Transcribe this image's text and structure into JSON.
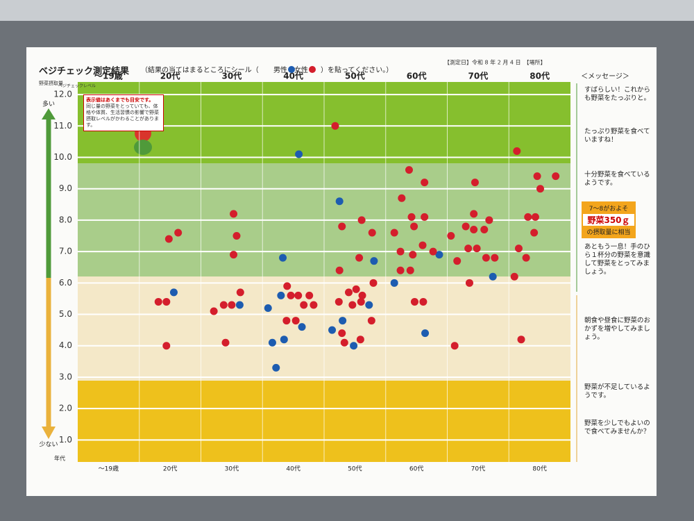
{
  "chart_data": {
    "type": "scatter",
    "title": "ベジチェック測定結果",
    "instruction_before": "（結果の当てはまるところにシール（",
    "instruction_after": "）を貼ってください。）",
    "date_field": "【測定日】令和 8 年 2 月 4 日　【場所】",
    "y_axis_title": "野菜摂取量",
    "y_axis_subtitle": "ベジチェックレベル",
    "more_label": "多い",
    "less_label": "少ない",
    "x_axis_title": "年代",
    "categories": [
      "～19歳",
      "20代",
      "30代",
      "40代",
      "50代",
      "60代",
      "70代",
      "80代"
    ],
    "xlim": [
      0,
      8
    ],
    "ylim": [
      0.3,
      12.4
    ],
    "yticks": [
      {
        "value": 1,
        "label": "1.0"
      },
      {
        "value": 2,
        "label": "2.0"
      },
      {
        "value": 3,
        "label": "3.0"
      },
      {
        "value": 4,
        "label": "4.0"
      },
      {
        "value": 5,
        "label": "5.0"
      },
      {
        "value": 6,
        "label": "6.0"
      },
      {
        "value": 7,
        "label": "7.0"
      },
      {
        "value": 8,
        "label": "8.0"
      },
      {
        "value": 9,
        "label": "9.0"
      },
      {
        "value": 10,
        "label": "10.0"
      },
      {
        "value": 11,
        "label": "11.0"
      },
      {
        "value": 12,
        "label": "12.0"
      }
    ],
    "grid": true,
    "series": [
      {
        "name": "男性",
        "color": "#1d5cb0",
        "x": [
          1.56,
          2.63,
          3.59,
          3.33,
          3.3,
          3.09,
          3.64,
          3.35,
          3.16,
          3.22,
          4.25,
          4.81,
          4.3,
          4.13,
          4.48,
          4.73,
          5.14,
          5.87,
          5.64,
          6.74
        ],
        "values": [
          5.7,
          5.3,
          10.1,
          6.8,
          5.6,
          5.2,
          4.6,
          4.2,
          4.1,
          3.3,
          8.6,
          6.7,
          4.8,
          4.5,
          4.0,
          5.3,
          6.0,
          6.9,
          4.4,
          6.2
        ]
      },
      {
        "name": "女性",
        "color": "#d41e2c",
        "x": [
          1.48,
          1.63,
          1.31,
          1.44,
          1.44,
          2.53,
          2.58,
          2.53,
          2.21,
          2.37,
          2.5,
          2.64,
          2.4,
          3.4,
          3.46,
          3.58,
          3.39,
          3.54,
          3.67,
          3.83,
          3.76,
          4.18,
          4.29,
          4.61,
          4.78,
          4.25,
          4.57,
          4.8,
          4.24,
          4.4,
          4.52,
          4.62,
          4.46,
          4.6,
          4.29,
          4.33,
          4.59,
          4.77,
          5.38,
          5.63,
          5.26,
          5.14,
          5.42,
          5.46,
          5.63,
          5.6,
          5.77,
          5.24,
          5.44,
          5.24,
          5.4,
          5.47,
          5.61,
          6.45,
          6.43,
          6.3,
          6.43,
          6.6,
          6.68,
          6.06,
          6.34,
          6.48,
          6.63,
          6.16,
          6.77,
          6.36,
          6.12,
          7.13,
          7.46,
          7.76,
          7.51,
          7.31,
          7.43,
          7.41,
          7.16,
          7.28,
          7.09,
          7.2
        ],
        "values": [
          7.4,
          7.6,
          5.4,
          5.4,
          4.0,
          8.2,
          7.5,
          6.9,
          5.1,
          5.3,
          5.3,
          5.7,
          4.1,
          5.9,
          5.6,
          5.6,
          4.8,
          4.8,
          5.3,
          5.3,
          5.6,
          11.0,
          7.8,
          8.0,
          7.6,
          6.4,
          6.8,
          6.0,
          5.4,
          5.7,
          5.8,
          5.6,
          5.3,
          5.4,
          4.4,
          4.1,
          4.2,
          4.8,
          9.6,
          9.2,
          8.7,
          7.6,
          8.1,
          7.8,
          8.1,
          7.2,
          7.0,
          7.0,
          6.9,
          6.4,
          6.4,
          5.4,
          5.4,
          9.2,
          8.2,
          7.8,
          7.7,
          7.7,
          8.0,
          7.5,
          7.1,
          7.1,
          6.8,
          6.7,
          6.8,
          6.0,
          4.0,
          10.2,
          9.4,
          9.4,
          9.0,
          8.1,
          8.1,
          7.6,
          7.1,
          6.8,
          6.2,
          4.2
        ]
      }
    ]
  },
  "note": {
    "title": "表示値はあくまでも目安です。",
    "body": "同じ量の野菜をとっていても、体格や体質、生活習慣の影響で野菜摂取レベルがかわることがあります。"
  },
  "messages_header": "＜メッセージ＞",
  "messages": [
    "すばらしい！これからも野菜をたっぷりと。",
    "たっぷり野菜を食べていますね！",
    "十分野菜を食べているようです。",
    "あともう一息！手のひら１杯分の野菜を意識して野菜をとってみましょう。",
    "朝食や昼食に野菜のおかずを増やしてみましょう。",
    "野菜が不足しているようです。",
    "野菜を少しでもよいので食べてみませんか？"
  ],
  "equivalence": {
    "before": "7～8がおよそ",
    "amount": "野菜350ｇ",
    "after": "の摂取量に相当"
  }
}
